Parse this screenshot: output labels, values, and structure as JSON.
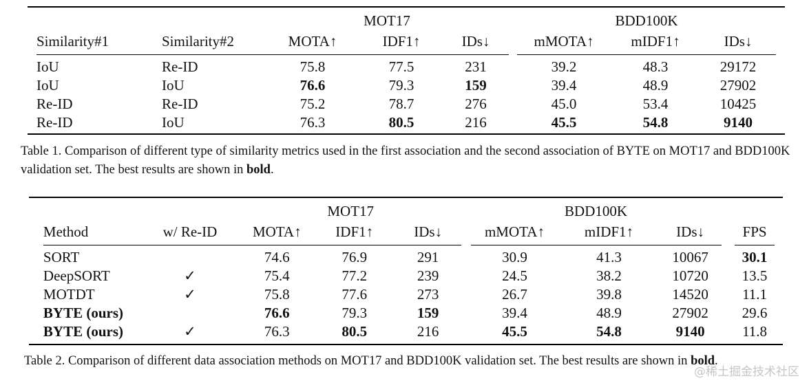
{
  "table1": {
    "group_headers": [
      "MOT17",
      "BDD100K"
    ],
    "columns": [
      "Similarity#1",
      "Similarity#2",
      "MOTA↑",
      "IDF1↑",
      "IDs↓",
      "mMOTA↑",
      "mIDF1↑",
      "IDs↓"
    ],
    "rows": [
      {
        "cells": [
          "IoU",
          "Re-ID",
          "75.8",
          "77.5",
          "231",
          "39.2",
          "48.3",
          "29172"
        ],
        "bold": []
      },
      {
        "cells": [
          "IoU",
          "IoU",
          "76.6",
          "79.3",
          "159",
          "39.4",
          "48.9",
          "27902"
        ],
        "bold": [
          2,
          4
        ]
      },
      {
        "cells": [
          "Re-ID",
          "Re-ID",
          "75.2",
          "78.7",
          "276",
          "45.0",
          "53.4",
          "10425"
        ],
        "bold": []
      },
      {
        "cells": [
          "Re-ID",
          "IoU",
          "76.3",
          "80.5",
          "216",
          "45.5",
          "54.8",
          "9140"
        ],
        "bold": [
          3,
          5,
          6,
          7
        ]
      }
    ],
    "caption_text": "Table 1.  Comparison of different type of similarity metrics used in the first association and the second association of BYTE on MOT17 and BDD100K validation set. The best results are shown in ",
    "caption_bold": "bold",
    "caption_end": "."
  },
  "table2": {
    "group_headers": [
      "MOT17",
      "BDD100K"
    ],
    "columns": [
      "Method",
      "w/ Re-ID",
      "MOTA↑",
      "IDF1↑",
      "IDs↓",
      "mMOTA↑",
      "mIDF1↑",
      "IDs↓",
      "FPS"
    ],
    "rows": [
      {
        "cells": [
          "SORT",
          "",
          "74.6",
          "76.9",
          "291",
          "30.9",
          "41.3",
          "10067",
          "30.1"
        ],
        "bold": [
          8
        ]
      },
      {
        "cells": [
          "DeepSORT",
          "✓",
          "75.4",
          "77.2",
          "239",
          "24.5",
          "38.2",
          "10720",
          "13.5"
        ],
        "bold": []
      },
      {
        "cells": [
          "MOTDT",
          "✓",
          "75.8",
          "77.6",
          "273",
          "26.7",
          "39.8",
          "14520",
          "11.1"
        ],
        "bold": []
      },
      {
        "cells": [
          "BYTE (ours)",
          "",
          "76.6",
          "79.3",
          "159",
          "39.4",
          "48.9",
          "27902",
          "29.6"
        ],
        "bold": [
          0,
          2,
          4
        ]
      },
      {
        "cells": [
          "BYTE (ours)",
          "✓",
          "76.3",
          "80.5",
          "216",
          "45.5",
          "54.8",
          "9140",
          "11.8"
        ],
        "bold": [
          0,
          3,
          5,
          6,
          7
        ]
      }
    ],
    "caption_text": "Table 2. Comparison of different data association methods on MOT17 and BDD100K validation set. The best results are shown in ",
    "caption_bold": "bold",
    "caption_end": "."
  },
  "watermark": "@稀土掘金技术社区"
}
